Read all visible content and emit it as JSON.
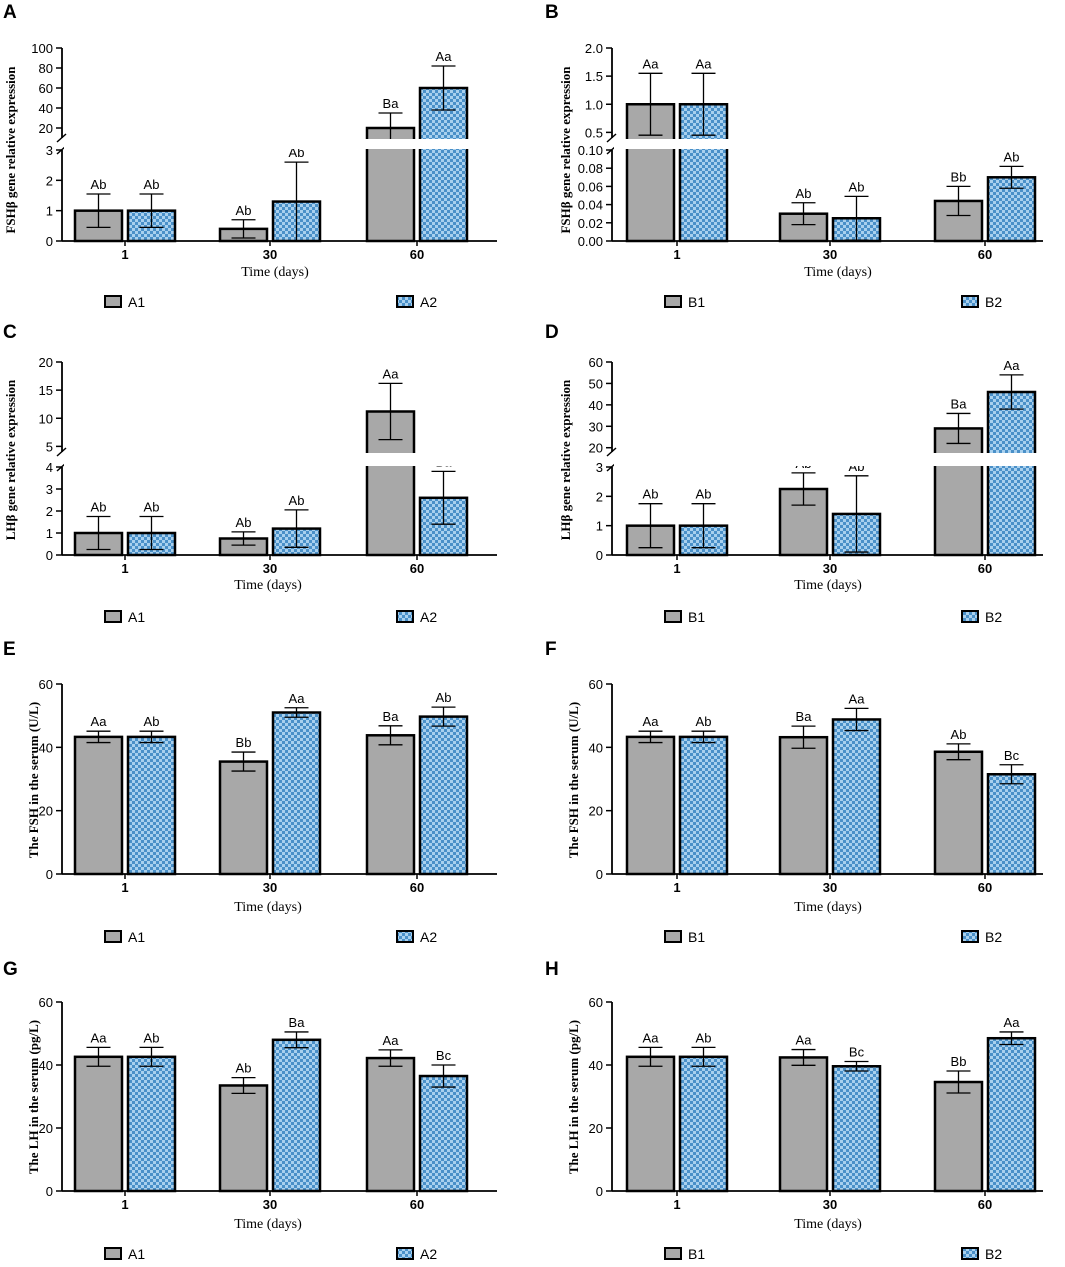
{
  "colors": {
    "bar_gray": "#a8a8a8",
    "check_blue": "#4a90c8",
    "check_light": "#a8d0ee",
    "axis": "#000000",
    "gap": "#ffffff"
  },
  "chart_data": [
    {
      "id": "A",
      "type": "bar",
      "panel_label": "A",
      "ylabel": "FSHβ gene relative expression",
      "xlabel": "Time (days)",
      "categories": [
        "1",
        "30",
        "60"
      ],
      "series": [
        {
          "name": "A1",
          "pattern": "solid",
          "values": [
            1.0,
            0.4,
            20
          ],
          "errors": [
            0.55,
            0.3,
            15
          ],
          "labels": [
            "Ab",
            "Ab",
            "Ba"
          ]
        },
        {
          "name": "A2",
          "pattern": "check",
          "values": [
            1.0,
            1.3,
            60
          ],
          "errors": [
            0.55,
            1.3,
            22
          ],
          "labels": [
            "Ab",
            "Ab",
            "Aa"
          ]
        }
      ],
      "legend": [
        "A1",
        "A2"
      ],
      "broken_axis": {
        "lower": {
          "range": [
            0,
            3
          ],
          "ticks": [
            0,
            1,
            2,
            3
          ],
          "tick_labels": [
            "0",
            "1",
            "2",
            "3"
          ]
        },
        "upper": {
          "range": [
            10,
            100
          ],
          "ticks": [
            20,
            40,
            60,
            80,
            100
          ],
          "tick_labels": [
            "20",
            "40",
            "60",
            "80",
            "100"
          ]
        }
      }
    },
    {
      "id": "B",
      "type": "bar",
      "panel_label": "B",
      "ylabel": "FSHβ gene relative expression",
      "xlabel": "Time (days)",
      "categories": [
        "1",
        "30",
        "60"
      ],
      "series": [
        {
          "name": "B1",
          "pattern": "solid",
          "values": [
            1.0,
            0.03,
            0.044
          ],
          "errors": [
            0.55,
            0.012,
            0.016
          ],
          "labels": [
            "Aa",
            "Ab",
            "Bb"
          ]
        },
        {
          "name": "B2",
          "pattern": "check",
          "values": [
            1.0,
            0.025,
            0.07
          ],
          "errors": [
            0.55,
            0.024,
            0.012
          ],
          "labels": [
            "Aa",
            "Ab",
            "Ab"
          ]
        }
      ],
      "legend": [
        "B1",
        "B2"
      ],
      "broken_axis": {
        "lower": {
          "range": [
            0,
            0.1
          ],
          "ticks": [
            0,
            0.02,
            0.04,
            0.06,
            0.08,
            0.1
          ],
          "tick_labels": [
            "0.00",
            "0.02",
            "0.04",
            "0.06",
            "0.08",
            "0.10"
          ]
        },
        "upper": {
          "range": [
            0.4,
            2.0
          ],
          "ticks": [
            0.5,
            1.0,
            1.5,
            2.0
          ],
          "tick_labels": [
            "0.5",
            "1.0",
            "1.5",
            "2.0"
          ]
        }
      }
    },
    {
      "id": "C",
      "type": "bar",
      "panel_label": "C",
      "ylabel": "LHβ gene relative expression",
      "xlabel": "Time (days)",
      "categories": [
        "1",
        "30",
        "60"
      ],
      "series": [
        {
          "name": "A1",
          "pattern": "solid",
          "values": [
            1.0,
            0.75,
            11.2
          ],
          "errors": [
            0.75,
            0.3,
            5.0
          ],
          "labels": [
            "Ab",
            "Ab",
            "Aa"
          ]
        },
        {
          "name": "A2",
          "pattern": "check",
          "values": [
            1.0,
            1.2,
            2.6
          ],
          "errors": [
            0.75,
            0.85,
            1.2
          ],
          "labels": [
            "Ab",
            "Ab",
            "Ba"
          ]
        }
      ],
      "legend": [
        "A1",
        "A2"
      ],
      "broken_axis": {
        "lower": {
          "range": [
            0,
            4
          ],
          "ticks": [
            0,
            1,
            2,
            3,
            4
          ],
          "tick_labels": [
            "0",
            "1",
            "2",
            "3",
            "4"
          ]
        },
        "upper": {
          "range": [
            4,
            20
          ],
          "ticks": [
            5,
            10,
            15,
            20
          ],
          "tick_labels": [
            "5",
            "10",
            "15",
            "20"
          ]
        }
      }
    },
    {
      "id": "D",
      "type": "bar",
      "panel_label": "D",
      "ylabel": "LHβ gene relative expression",
      "xlabel": "Time (days)",
      "categories": [
        "1",
        "30",
        "60"
      ],
      "series": [
        {
          "name": "B1",
          "pattern": "solid",
          "values": [
            1.0,
            2.25,
            29
          ],
          "errors": [
            0.75,
            0.55,
            7
          ],
          "labels": [
            "Ab",
            "Ab",
            "Ba"
          ]
        },
        {
          "name": "B2",
          "pattern": "check",
          "values": [
            1.0,
            1.4,
            46
          ],
          "errors": [
            0.75,
            1.3,
            8
          ],
          "labels": [
            "Ab",
            "Ab",
            "Aa"
          ]
        }
      ],
      "legend": [
        "B1",
        "B2"
      ],
      "broken_axis": {
        "lower": {
          "range": [
            0,
            3
          ],
          "ticks": [
            0,
            1,
            2,
            3
          ],
          "tick_labels": [
            "0",
            "1",
            "2",
            "3"
          ]
        },
        "upper": {
          "range": [
            18,
            60
          ],
          "ticks": [
            20,
            30,
            40,
            50,
            60
          ],
          "tick_labels": [
            "20",
            "30",
            "40",
            "50",
            "60"
          ]
        }
      }
    },
    {
      "id": "E",
      "type": "bar",
      "panel_label": "E",
      "ylabel": "The FSH in the serum (U/L)",
      "xlabel": "Time (days)",
      "categories": [
        "1",
        "30",
        "60"
      ],
      "ylim": [
        0,
        60
      ],
      "yticks": [
        0,
        20,
        40,
        60
      ],
      "series": [
        {
          "name": "A1",
          "pattern": "solid",
          "values": [
            43.3,
            35.5,
            43.8
          ],
          "errors": [
            1.8,
            3.0,
            3.0
          ],
          "labels": [
            "Aa",
            "Bb",
            "Ba"
          ]
        },
        {
          "name": "A2",
          "pattern": "check",
          "values": [
            43.3,
            51,
            49.7
          ],
          "errors": [
            1.8,
            1.5,
            3.0
          ],
          "labels": [
            "Ab",
            "Aa",
            "Ab"
          ]
        }
      ],
      "legend": [
        "A1",
        "A2"
      ]
    },
    {
      "id": "F",
      "type": "bar",
      "panel_label": "F",
      "ylabel": "The FSH in the serum (U/L)",
      "xlabel": "Time (days)",
      "categories": [
        "1",
        "30",
        "60"
      ],
      "ylim": [
        0,
        60
      ],
      "yticks": [
        0,
        20,
        40,
        60
      ],
      "series": [
        {
          "name": "B1",
          "pattern": "solid",
          "values": [
            43.3,
            43.2,
            38.6
          ],
          "errors": [
            1.8,
            3.5,
            2.5
          ],
          "labels": [
            "Aa",
            "Ba",
            "Ab"
          ]
        },
        {
          "name": "B2",
          "pattern": "check",
          "values": [
            43.3,
            48.8,
            31.5
          ],
          "errors": [
            1.8,
            3.5,
            3.0
          ],
          "labels": [
            "Ab",
            "Aa",
            "Bc"
          ]
        }
      ],
      "legend": [
        "B1",
        "B2"
      ]
    },
    {
      "id": "G",
      "type": "bar",
      "panel_label": "G",
      "ylabel": "The LH in the serum (pg/L)",
      "xlabel": "Time (days)",
      "categories": [
        "1",
        "30",
        "60"
      ],
      "ylim": [
        0,
        60
      ],
      "yticks": [
        0,
        20,
        40,
        60
      ],
      "series": [
        {
          "name": "A1",
          "pattern": "solid",
          "values": [
            42.6,
            33.5,
            42.2
          ],
          "errors": [
            3.0,
            2.5,
            2.6
          ],
          "labels": [
            "Aa",
            "Ab",
            "Aa"
          ]
        },
        {
          "name": "A2",
          "pattern": "check",
          "values": [
            42.6,
            48,
            36.5
          ],
          "errors": [
            3.0,
            2.5,
            3.5
          ],
          "labels": [
            "Ab",
            "Ba",
            "Bc"
          ]
        }
      ],
      "legend": [
        "A1",
        "A2"
      ]
    },
    {
      "id": "H",
      "type": "bar",
      "panel_label": "H",
      "ylabel": "The LH in the serum (pg/L)",
      "xlabel": "Time (days)",
      "categories": [
        "1",
        "30",
        "60"
      ],
      "ylim": [
        0,
        60
      ],
      "yticks": [
        0,
        20,
        40,
        60
      ],
      "series": [
        {
          "name": "B1",
          "pattern": "solid",
          "values": [
            42.6,
            42.4,
            34.6
          ],
          "errors": [
            3.0,
            2.5,
            3.5
          ],
          "labels": [
            "Aa",
            "Aa",
            "Bb"
          ]
        },
        {
          "name": "B2",
          "pattern": "check",
          "values": [
            42.6,
            39.6,
            48.5
          ],
          "errors": [
            3.0,
            1.5,
            2.0
          ],
          "labels": [
            "Ab",
            "Bc",
            "Aa"
          ]
        }
      ],
      "legend": [
        "B1",
        "B2"
      ]
    }
  ]
}
